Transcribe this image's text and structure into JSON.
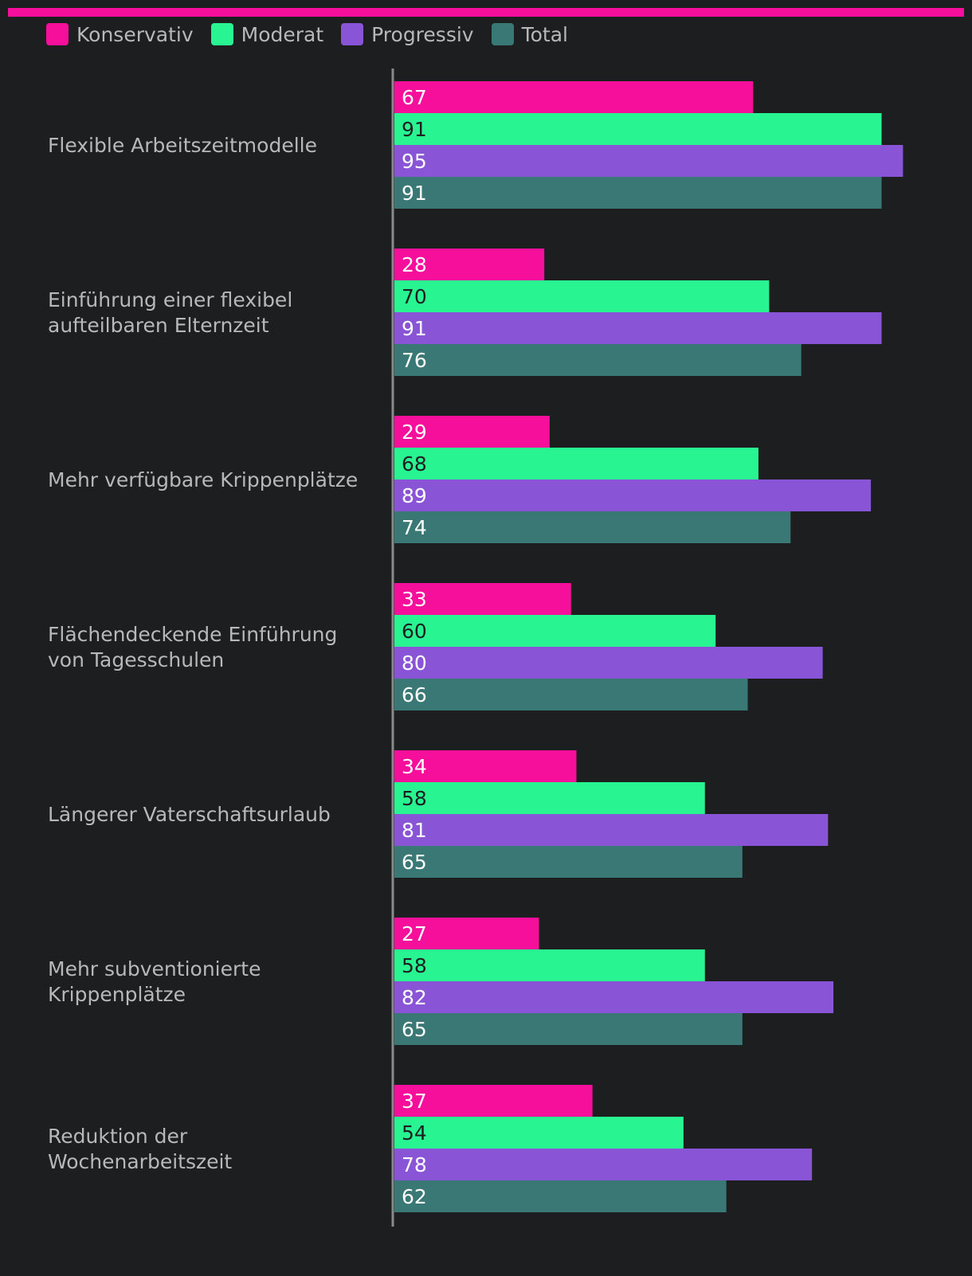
{
  "colors": {
    "accent_bar": "#f50f9a",
    "axis": "#8a8a8a",
    "background": "#1d1e20"
  },
  "legend": [
    {
      "name": "Konservativ",
      "color": "#f50f9a"
    },
    {
      "name": "Moderat",
      "color": "#28f592"
    },
    {
      "name": "Progressiv",
      "color": "#8955d6"
    },
    {
      "name": "Total",
      "color": "#3a7875"
    }
  ],
  "chart_data": {
    "type": "bar",
    "orientation": "horizontal",
    "categories": [
      "Flexible Arbeitszeitmodelle",
      "Einführung einer flexibel aufteilbaren Elternzeit",
      "Mehr verfügbare Krippenplätze",
      "Flächendeckende Einführung von Tagesschulen",
      "Längerer Vaterschaftsurlaub",
      "Mehr subventionierte Krippenplätze",
      "Reduktion der Wochenarbeitszeit"
    ],
    "category_lines": [
      [
        "Flexible Arbeitszeitmodelle"
      ],
      [
        "Einführung einer flexibel",
        "aufteilbaren Elternzeit"
      ],
      [
        "Mehr verfügbare Krippenplätze"
      ],
      [
        "Flächendeckende Einführung",
        "von Tagesschulen"
      ],
      [
        "Längerer Vaterschaftsurlaub"
      ],
      [
        "Mehr subventionierte",
        "Krippenplätze"
      ],
      [
        "Reduktion der",
        "Wochenarbeitszeit"
      ]
    ],
    "series": [
      {
        "name": "Konservativ",
        "color": "#f50f9a",
        "label_color": "#ffffff",
        "values": [
          67,
          28,
          29,
          33,
          34,
          27,
          37
        ]
      },
      {
        "name": "Moderat",
        "color": "#28f592",
        "label_color": "#1d1e20",
        "values": [
          91,
          70,
          68,
          60,
          58,
          58,
          54
        ]
      },
      {
        "name": "Progressiv",
        "color": "#8955d6",
        "label_color": "#ffffff",
        "values": [
          95,
          91,
          89,
          80,
          81,
          82,
          78
        ]
      },
      {
        "name": "Total",
        "color": "#3a7875",
        "label_color": "#ffffff",
        "values": [
          91,
          76,
          74,
          66,
          65,
          65,
          62
        ]
      }
    ],
    "xlim": [
      0,
      100
    ],
    "grid": false,
    "legend_position": "top-left",
    "data_labels": "inside-start"
  }
}
